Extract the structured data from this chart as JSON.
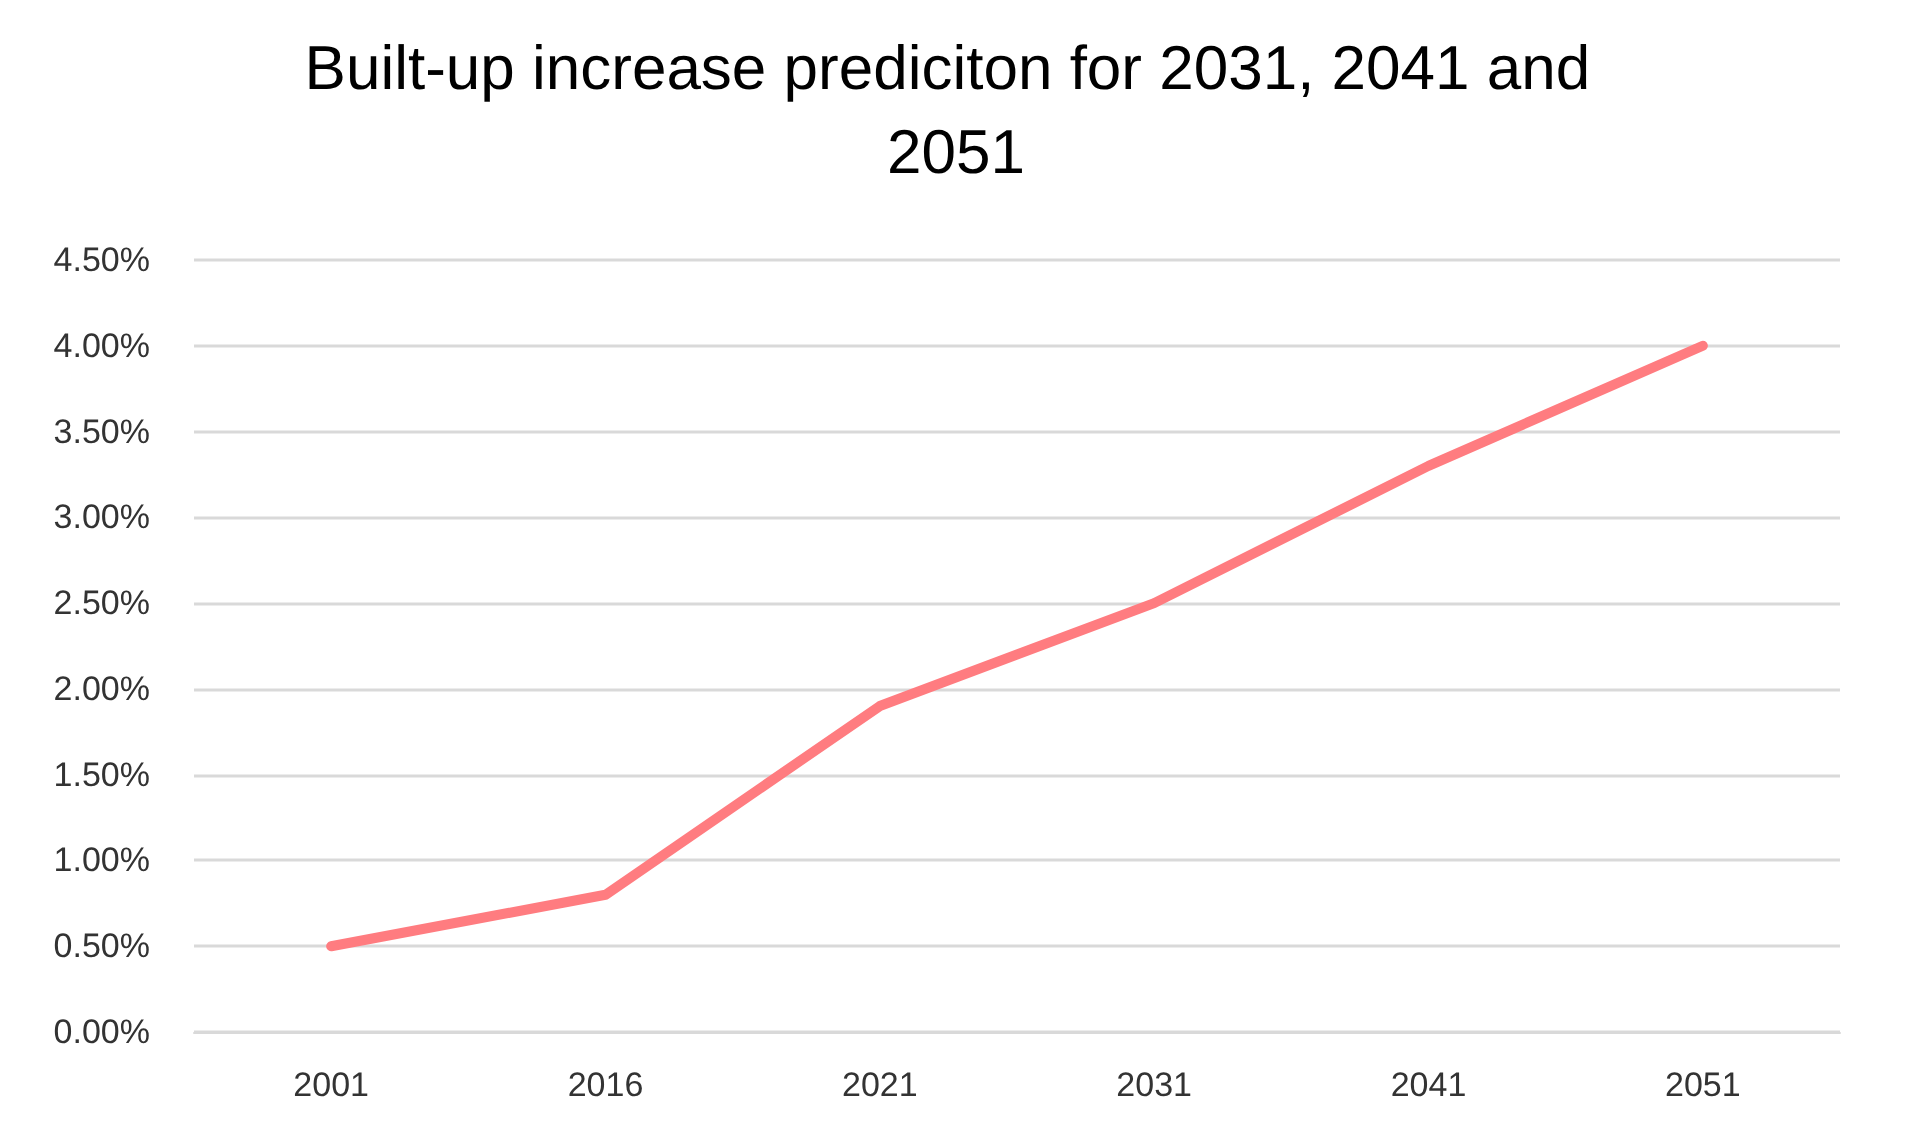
{
  "chart_data": {
    "type": "line",
    "title": "Built-up increase prediciton for 2031, 2041 and 2051",
    "categories": [
      "2001",
      "2016",
      "2021",
      "2031",
      "2041",
      "2051"
    ],
    "series": [
      {
        "color": "#ff7c80",
        "values": [
          0.5,
          0.8,
          1.9,
          2.5,
          3.3,
          4.0
        ]
      }
    ],
    "ylim": [
      0,
      4.5
    ],
    "yticks": [
      {
        "value": 0,
        "label": "0.00%"
      },
      {
        "value": 0.5,
        "label": "0.50%"
      },
      {
        "value": 1,
        "label": "1.00%"
      },
      {
        "value": 1.5,
        "label": "1.50%"
      },
      {
        "value": 2,
        "label": "2.00%"
      },
      {
        "value": 2.5,
        "label": "2.50%"
      },
      {
        "value": 3,
        "label": "3.00%"
      },
      {
        "value": 3.5,
        "label": "3.50%"
      },
      {
        "value": 4,
        "label": "4.00%"
      },
      {
        "value": 4.5,
        "label": "4.50%"
      }
    ],
    "grid": "y",
    "marker": "none",
    "line_style": "solid"
  }
}
